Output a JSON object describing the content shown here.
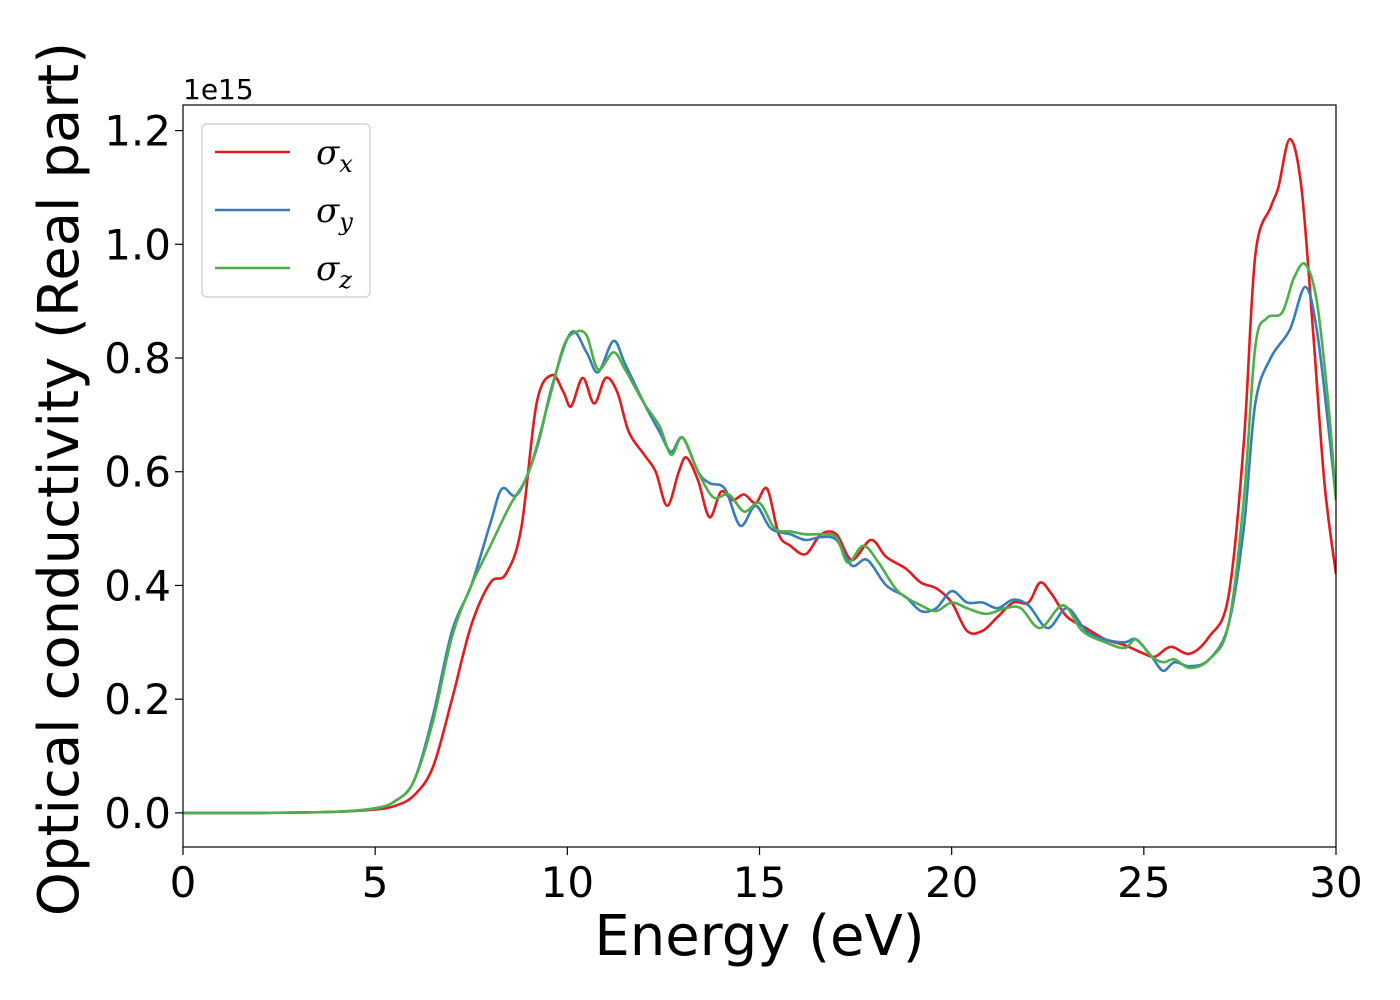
{
  "chart_data": {
    "type": "line",
    "title": "",
    "xlabel": "Energy (eV)",
    "ylabel": "Optical conductivity (Real part)",
    "y_offset_label": "1e15",
    "xlim": [
      0,
      30
    ],
    "ylim": [
      -0.06,
      1.245
    ],
    "xticks": [
      0,
      5,
      10,
      15,
      20,
      25,
      30
    ],
    "xtick_labels": [
      "0",
      "5",
      "10",
      "15",
      "20",
      "25",
      "30"
    ],
    "yticks": [
      0.0,
      0.2,
      0.4,
      0.6,
      0.8,
      1.0,
      1.2
    ],
    "ytick_labels": [
      "0.0",
      "0.2",
      "0.4",
      "0.6",
      "0.8",
      "1.0",
      "1.2"
    ],
    "grid": false,
    "legend_position": "top-left",
    "colors": {
      "sigma_x": "#e41a1c",
      "sigma_y": "#377eb8",
      "sigma_z": "#4daf4a"
    },
    "series": [
      {
        "name": "σx",
        "symbol": "σ",
        "subscript": "x",
        "color": "#e41a1c",
        "points": [
          [
            0,
            0
          ],
          [
            2,
            0
          ],
          [
            4,
            0.002
          ],
          [
            5,
            0.006
          ],
          [
            5.5,
            0.012
          ],
          [
            6,
            0.03
          ],
          [
            6.5,
            0.08
          ],
          [
            7,
            0.2
          ],
          [
            7.5,
            0.33
          ],
          [
            8,
            0.405
          ],
          [
            8.4,
            0.42
          ],
          [
            8.8,
            0.5
          ],
          [
            9.2,
            0.72
          ],
          [
            9.6,
            0.77
          ],
          [
            9.9,
            0.74
          ],
          [
            10.1,
            0.715
          ],
          [
            10.4,
            0.765
          ],
          [
            10.7,
            0.72
          ],
          [
            11,
            0.765
          ],
          [
            11.3,
            0.74
          ],
          [
            11.6,
            0.67
          ],
          [
            12,
            0.63
          ],
          [
            12.3,
            0.6
          ],
          [
            12.6,
            0.54
          ],
          [
            12.9,
            0.6
          ],
          [
            13.1,
            0.625
          ],
          [
            13.4,
            0.585
          ],
          [
            13.7,
            0.52
          ],
          [
            14,
            0.565
          ],
          [
            14.3,
            0.55
          ],
          [
            14.6,
            0.56
          ],
          [
            14.9,
            0.545
          ],
          [
            15.2,
            0.57
          ],
          [
            15.5,
            0.49
          ],
          [
            15.8,
            0.47
          ],
          [
            16.2,
            0.455
          ],
          [
            16.6,
            0.49
          ],
          [
            17,
            0.49
          ],
          [
            17.4,
            0.445
          ],
          [
            17.9,
            0.48
          ],
          [
            18.3,
            0.45
          ],
          [
            18.8,
            0.43
          ],
          [
            19.2,
            0.405
          ],
          [
            19.6,
            0.395
          ],
          [
            20,
            0.37
          ],
          [
            20.4,
            0.32
          ],
          [
            20.8,
            0.32
          ],
          [
            21.2,
            0.345
          ],
          [
            21.6,
            0.37
          ],
          [
            22,
            0.37
          ],
          [
            22.3,
            0.405
          ],
          [
            22.6,
            0.385
          ],
          [
            23,
            0.345
          ],
          [
            23.5,
            0.325
          ],
          [
            24,
            0.305
          ],
          [
            24.5,
            0.295
          ],
          [
            25,
            0.28
          ],
          [
            25.3,
            0.275
          ],
          [
            25.7,
            0.292
          ],
          [
            26.2,
            0.28
          ],
          [
            26.7,
            0.31
          ],
          [
            27.2,
            0.38
          ],
          [
            27.6,
            0.65
          ],
          [
            27.9,
            0.98
          ],
          [
            28.3,
            1.065
          ],
          [
            28.5,
            1.1
          ],
          [
            28.8,
            1.185
          ],
          [
            29.1,
            1.1
          ],
          [
            29.4,
            0.85
          ],
          [
            29.7,
            0.58
          ],
          [
            30,
            0.42
          ]
        ]
      },
      {
        "name": "σy",
        "symbol": "σ",
        "subscript": "y",
        "color": "#377eb8",
        "points": [
          [
            0,
            0
          ],
          [
            2,
            0
          ],
          [
            4,
            0.002
          ],
          [
            5,
            0.008
          ],
          [
            5.5,
            0.02
          ],
          [
            6,
            0.055
          ],
          [
            6.5,
            0.17
          ],
          [
            7,
            0.32
          ],
          [
            7.5,
            0.4
          ],
          [
            8,
            0.51
          ],
          [
            8.3,
            0.57
          ],
          [
            8.7,
            0.56
          ],
          [
            9.2,
            0.64
          ],
          [
            9.6,
            0.75
          ],
          [
            10.1,
            0.845
          ],
          [
            10.5,
            0.81
          ],
          [
            10.8,
            0.775
          ],
          [
            11.2,
            0.83
          ],
          [
            11.5,
            0.79
          ],
          [
            12,
            0.72
          ],
          [
            12.4,
            0.67
          ],
          [
            12.7,
            0.635
          ],
          [
            13,
            0.66
          ],
          [
            13.4,
            0.6
          ],
          [
            13.7,
            0.58
          ],
          [
            14.1,
            0.57
          ],
          [
            14.5,
            0.505
          ],
          [
            14.9,
            0.54
          ],
          [
            15.3,
            0.5
          ],
          [
            15.8,
            0.49
          ],
          [
            16.2,
            0.48
          ],
          [
            16.6,
            0.485
          ],
          [
            17,
            0.48
          ],
          [
            17.4,
            0.435
          ],
          [
            17.8,
            0.445
          ],
          [
            18.3,
            0.4
          ],
          [
            18.8,
            0.38
          ],
          [
            19.2,
            0.355
          ],
          [
            19.6,
            0.36
          ],
          [
            20,
            0.39
          ],
          [
            20.4,
            0.37
          ],
          [
            20.8,
            0.37
          ],
          [
            21.2,
            0.36
          ],
          [
            21.6,
            0.375
          ],
          [
            22,
            0.365
          ],
          [
            22.5,
            0.325
          ],
          [
            23,
            0.36
          ],
          [
            23.5,
            0.32
          ],
          [
            24,
            0.305
          ],
          [
            24.5,
            0.3
          ],
          [
            24.8,
            0.305
          ],
          [
            25.2,
            0.275
          ],
          [
            25.5,
            0.25
          ],
          [
            25.8,
            0.265
          ],
          [
            26.2,
            0.258
          ],
          [
            26.7,
            0.27
          ],
          [
            27.2,
            0.33
          ],
          [
            27.6,
            0.5
          ],
          [
            27.9,
            0.72
          ],
          [
            28.3,
            0.8
          ],
          [
            28.8,
            0.85
          ],
          [
            29.2,
            0.925
          ],
          [
            29.5,
            0.85
          ],
          [
            29.8,
            0.68
          ],
          [
            30,
            0.55
          ]
        ]
      },
      {
        "name": "σz",
        "symbol": "σ",
        "subscript": "z",
        "color": "#4daf4a",
        "points": [
          [
            0,
            0
          ],
          [
            2,
            0
          ],
          [
            4,
            0.002
          ],
          [
            5,
            0.008
          ],
          [
            5.5,
            0.02
          ],
          [
            6,
            0.055
          ],
          [
            6.5,
            0.16
          ],
          [
            7,
            0.31
          ],
          [
            7.5,
            0.4
          ],
          [
            8,
            0.47
          ],
          [
            8.5,
            0.54
          ],
          [
            9,
            0.6
          ],
          [
            9.5,
            0.72
          ],
          [
            9.9,
            0.82
          ],
          [
            10.2,
            0.845
          ],
          [
            10.5,
            0.84
          ],
          [
            10.8,
            0.78
          ],
          [
            11.2,
            0.81
          ],
          [
            11.5,
            0.78
          ],
          [
            12,
            0.72
          ],
          [
            12.4,
            0.68
          ],
          [
            12.7,
            0.63
          ],
          [
            13,
            0.66
          ],
          [
            13.4,
            0.6
          ],
          [
            13.8,
            0.555
          ],
          [
            14.2,
            0.56
          ],
          [
            14.6,
            0.53
          ],
          [
            15,
            0.545
          ],
          [
            15.4,
            0.5
          ],
          [
            15.8,
            0.495
          ],
          [
            16.2,
            0.49
          ],
          [
            16.6,
            0.49
          ],
          [
            17,
            0.485
          ],
          [
            17.3,
            0.44
          ],
          [
            17.7,
            0.47
          ],
          [
            18.1,
            0.44
          ],
          [
            18.6,
            0.39
          ],
          [
            19.2,
            0.365
          ],
          [
            19.6,
            0.355
          ],
          [
            20,
            0.37
          ],
          [
            20.4,
            0.36
          ],
          [
            20.9,
            0.35
          ],
          [
            21.4,
            0.36
          ],
          [
            21.8,
            0.36
          ],
          [
            22.3,
            0.325
          ],
          [
            22.9,
            0.365
          ],
          [
            23.4,
            0.32
          ],
          [
            24,
            0.3
          ],
          [
            24.5,
            0.29
          ],
          [
            24.8,
            0.305
          ],
          [
            25.2,
            0.275
          ],
          [
            25.5,
            0.265
          ],
          [
            25.8,
            0.27
          ],
          [
            26.2,
            0.255
          ],
          [
            26.7,
            0.27
          ],
          [
            27.2,
            0.33
          ],
          [
            27.6,
            0.55
          ],
          [
            27.9,
            0.82
          ],
          [
            28.2,
            0.87
          ],
          [
            28.6,
            0.88
          ],
          [
            28.9,
            0.94
          ],
          [
            29.2,
            0.965
          ],
          [
            29.5,
            0.9
          ],
          [
            29.8,
            0.72
          ],
          [
            30,
            0.55
          ]
        ]
      }
    ]
  }
}
